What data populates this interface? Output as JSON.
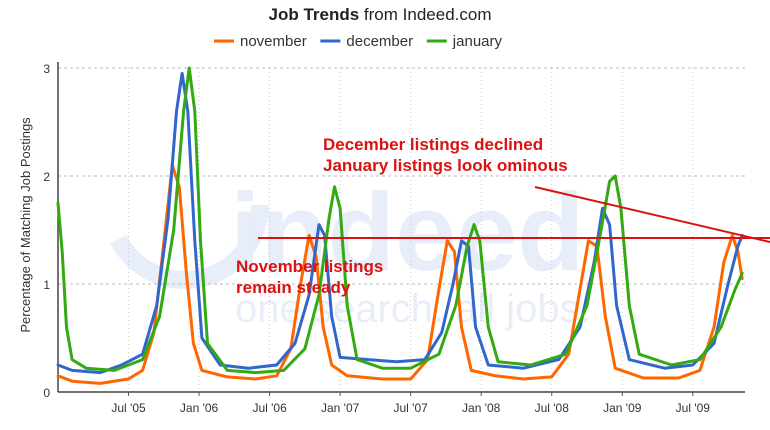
{
  "chart_data": {
    "type": "line",
    "title_bold": "Job Trends",
    "title_rest": " from Indeed.com",
    "ylabel": "Percentage of Matching Job Postings",
    "xlabel": "",
    "ylim": [
      0,
      3
    ],
    "y_ticks": [
      "0",
      "1",
      "2",
      "3"
    ],
    "x_ticks": [
      {
        "label": "Jul '05",
        "t": 2005.5
      },
      {
        "label": "Jan '06",
        "t": 2006.0
      },
      {
        "label": "Jul '06",
        "t": 2006.5
      },
      {
        "label": "Jan '07",
        "t": 2007.0
      },
      {
        "label": "Jul '07",
        "t": 2007.5
      },
      {
        "label": "Jan '08",
        "t": 2008.0
      },
      {
        "label": "Jul '08",
        "t": 2008.5
      },
      {
        "label": "Jan '09",
        "t": 2009.0
      },
      {
        "label": "Jul '09",
        "t": 2009.5
      }
    ],
    "grid": true,
    "legend_position": "top-center",
    "watermark": "indeed one search. all jobs.",
    "series": [
      {
        "name": "november",
        "color": "#ff6600",
        "points": [
          [
            2005.0,
            0.15
          ],
          [
            2005.1,
            0.1
          ],
          [
            2005.3,
            0.08
          ],
          [
            2005.5,
            0.12
          ],
          [
            2005.6,
            0.2
          ],
          [
            2005.68,
            0.55
          ],
          [
            2005.76,
            1.5
          ],
          [
            2005.81,
            2.1
          ],
          [
            2005.86,
            1.9
          ],
          [
            2005.91,
            1.1
          ],
          [
            2005.96,
            0.45
          ],
          [
            2006.02,
            0.2
          ],
          [
            2006.2,
            0.14
          ],
          [
            2006.4,
            0.12
          ],
          [
            2006.55,
            0.15
          ],
          [
            2006.65,
            0.4
          ],
          [
            2006.72,
            1.0
          ],
          [
            2006.78,
            1.45
          ],
          [
            2006.83,
            1.25
          ],
          [
            2006.88,
            0.6
          ],
          [
            2006.94,
            0.25
          ],
          [
            2007.05,
            0.15
          ],
          [
            2007.3,
            0.12
          ],
          [
            2007.5,
            0.12
          ],
          [
            2007.62,
            0.3
          ],
          [
            2007.7,
            0.95
          ],
          [
            2007.76,
            1.4
          ],
          [
            2007.81,
            1.3
          ],
          [
            2007.86,
            0.6
          ],
          [
            2007.93,
            0.2
          ],
          [
            2008.1,
            0.15
          ],
          [
            2008.3,
            0.12
          ],
          [
            2008.5,
            0.14
          ],
          [
            2008.62,
            0.35
          ],
          [
            2008.7,
            0.95
          ],
          [
            2008.76,
            1.4
          ],
          [
            2008.82,
            1.35
          ],
          [
            2008.88,
            0.7
          ],
          [
            2008.95,
            0.22
          ],
          [
            2009.15,
            0.13
          ],
          [
            2009.4,
            0.13
          ],
          [
            2009.55,
            0.2
          ],
          [
            2009.65,
            0.6
          ],
          [
            2009.72,
            1.2
          ],
          [
            2009.78,
            1.45
          ],
          [
            2009.82,
            1.3
          ],
          [
            2009.85,
            1.05
          ]
        ]
      },
      {
        "name": "december",
        "color": "#3366cc",
        "points": [
          [
            2005.0,
            0.25
          ],
          [
            2005.1,
            0.2
          ],
          [
            2005.3,
            0.18
          ],
          [
            2005.45,
            0.25
          ],
          [
            2005.6,
            0.35
          ],
          [
            2005.7,
            0.8
          ],
          [
            2005.78,
            1.6
          ],
          [
            2005.84,
            2.6
          ],
          [
            2005.88,
            2.95
          ],
          [
            2005.92,
            2.6
          ],
          [
            2005.97,
            1.4
          ],
          [
            2006.02,
            0.5
          ],
          [
            2006.15,
            0.25
          ],
          [
            2006.35,
            0.22
          ],
          [
            2006.55,
            0.25
          ],
          [
            2006.68,
            0.45
          ],
          [
            2006.78,
            0.9
          ],
          [
            2006.85,
            1.55
          ],
          [
            2006.89,
            1.45
          ],
          [
            2006.94,
            0.7
          ],
          [
            2007.0,
            0.32
          ],
          [
            2007.2,
            0.3
          ],
          [
            2007.4,
            0.28
          ],
          [
            2007.6,
            0.3
          ],
          [
            2007.72,
            0.55
          ],
          [
            2007.8,
            1.0
          ],
          [
            2007.86,
            1.4
          ],
          [
            2007.91,
            1.35
          ],
          [
            2007.96,
            0.6
          ],
          [
            2008.05,
            0.25
          ],
          [
            2008.3,
            0.22
          ],
          [
            2008.55,
            0.3
          ],
          [
            2008.7,
            0.6
          ],
          [
            2008.8,
            1.2
          ],
          [
            2008.86,
            1.7
          ],
          [
            2008.91,
            1.55
          ],
          [
            2008.96,
            0.8
          ],
          [
            2009.05,
            0.3
          ],
          [
            2009.3,
            0.22
          ],
          [
            2009.5,
            0.25
          ],
          [
            2009.65,
            0.45
          ],
          [
            2009.75,
            1.0
          ],
          [
            2009.82,
            1.35
          ],
          [
            2009.85,
            1.45
          ]
        ]
      },
      {
        "name": "january",
        "color": "#33aa11",
        "points": [
          [
            2005.0,
            1.75
          ],
          [
            2005.03,
            1.3
          ],
          [
            2005.06,
            0.6
          ],
          [
            2005.1,
            0.3
          ],
          [
            2005.2,
            0.22
          ],
          [
            2005.4,
            0.2
          ],
          [
            2005.6,
            0.3
          ],
          [
            2005.72,
            0.7
          ],
          [
            2005.82,
            1.5
          ],
          [
            2005.89,
            2.6
          ],
          [
            2005.93,
            3.0
          ],
          [
            2005.97,
            2.6
          ],
          [
            2006.01,
            1.4
          ],
          [
            2006.06,
            0.45
          ],
          [
            2006.2,
            0.2
          ],
          [
            2006.4,
            0.18
          ],
          [
            2006.6,
            0.2
          ],
          [
            2006.75,
            0.4
          ],
          [
            2006.85,
            0.9
          ],
          [
            2006.92,
            1.6
          ],
          [
            2006.96,
            1.9
          ],
          [
            2007.0,
            1.7
          ],
          [
            2007.05,
            0.8
          ],
          [
            2007.12,
            0.3
          ],
          [
            2007.3,
            0.22
          ],
          [
            2007.5,
            0.22
          ],
          [
            2007.7,
            0.35
          ],
          [
            2007.82,
            0.8
          ],
          [
            2007.9,
            1.35
          ],
          [
            2007.95,
            1.55
          ],
          [
            2007.99,
            1.4
          ],
          [
            2008.05,
            0.6
          ],
          [
            2008.12,
            0.28
          ],
          [
            2008.35,
            0.25
          ],
          [
            2008.6,
            0.35
          ],
          [
            2008.75,
            0.8
          ],
          [
            2008.85,
            1.5
          ],
          [
            2008.91,
            1.95
          ],
          [
            2008.95,
            2.0
          ],
          [
            2008.99,
            1.7
          ],
          [
            2009.05,
            0.8
          ],
          [
            2009.12,
            0.35
          ],
          [
            2009.35,
            0.25
          ],
          [
            2009.55,
            0.3
          ],
          [
            2009.7,
            0.6
          ],
          [
            2009.8,
            0.95
          ],
          [
            2009.85,
            1.1
          ]
        ]
      }
    ],
    "x_domain": [
      2005.0,
      2009.87
    ],
    "annotations": {
      "top": [
        "December listings declined",
        "January listings look ominous"
      ],
      "bottom": [
        "November listings",
        "remain steady"
      ],
      "color": "#dd1111"
    }
  }
}
